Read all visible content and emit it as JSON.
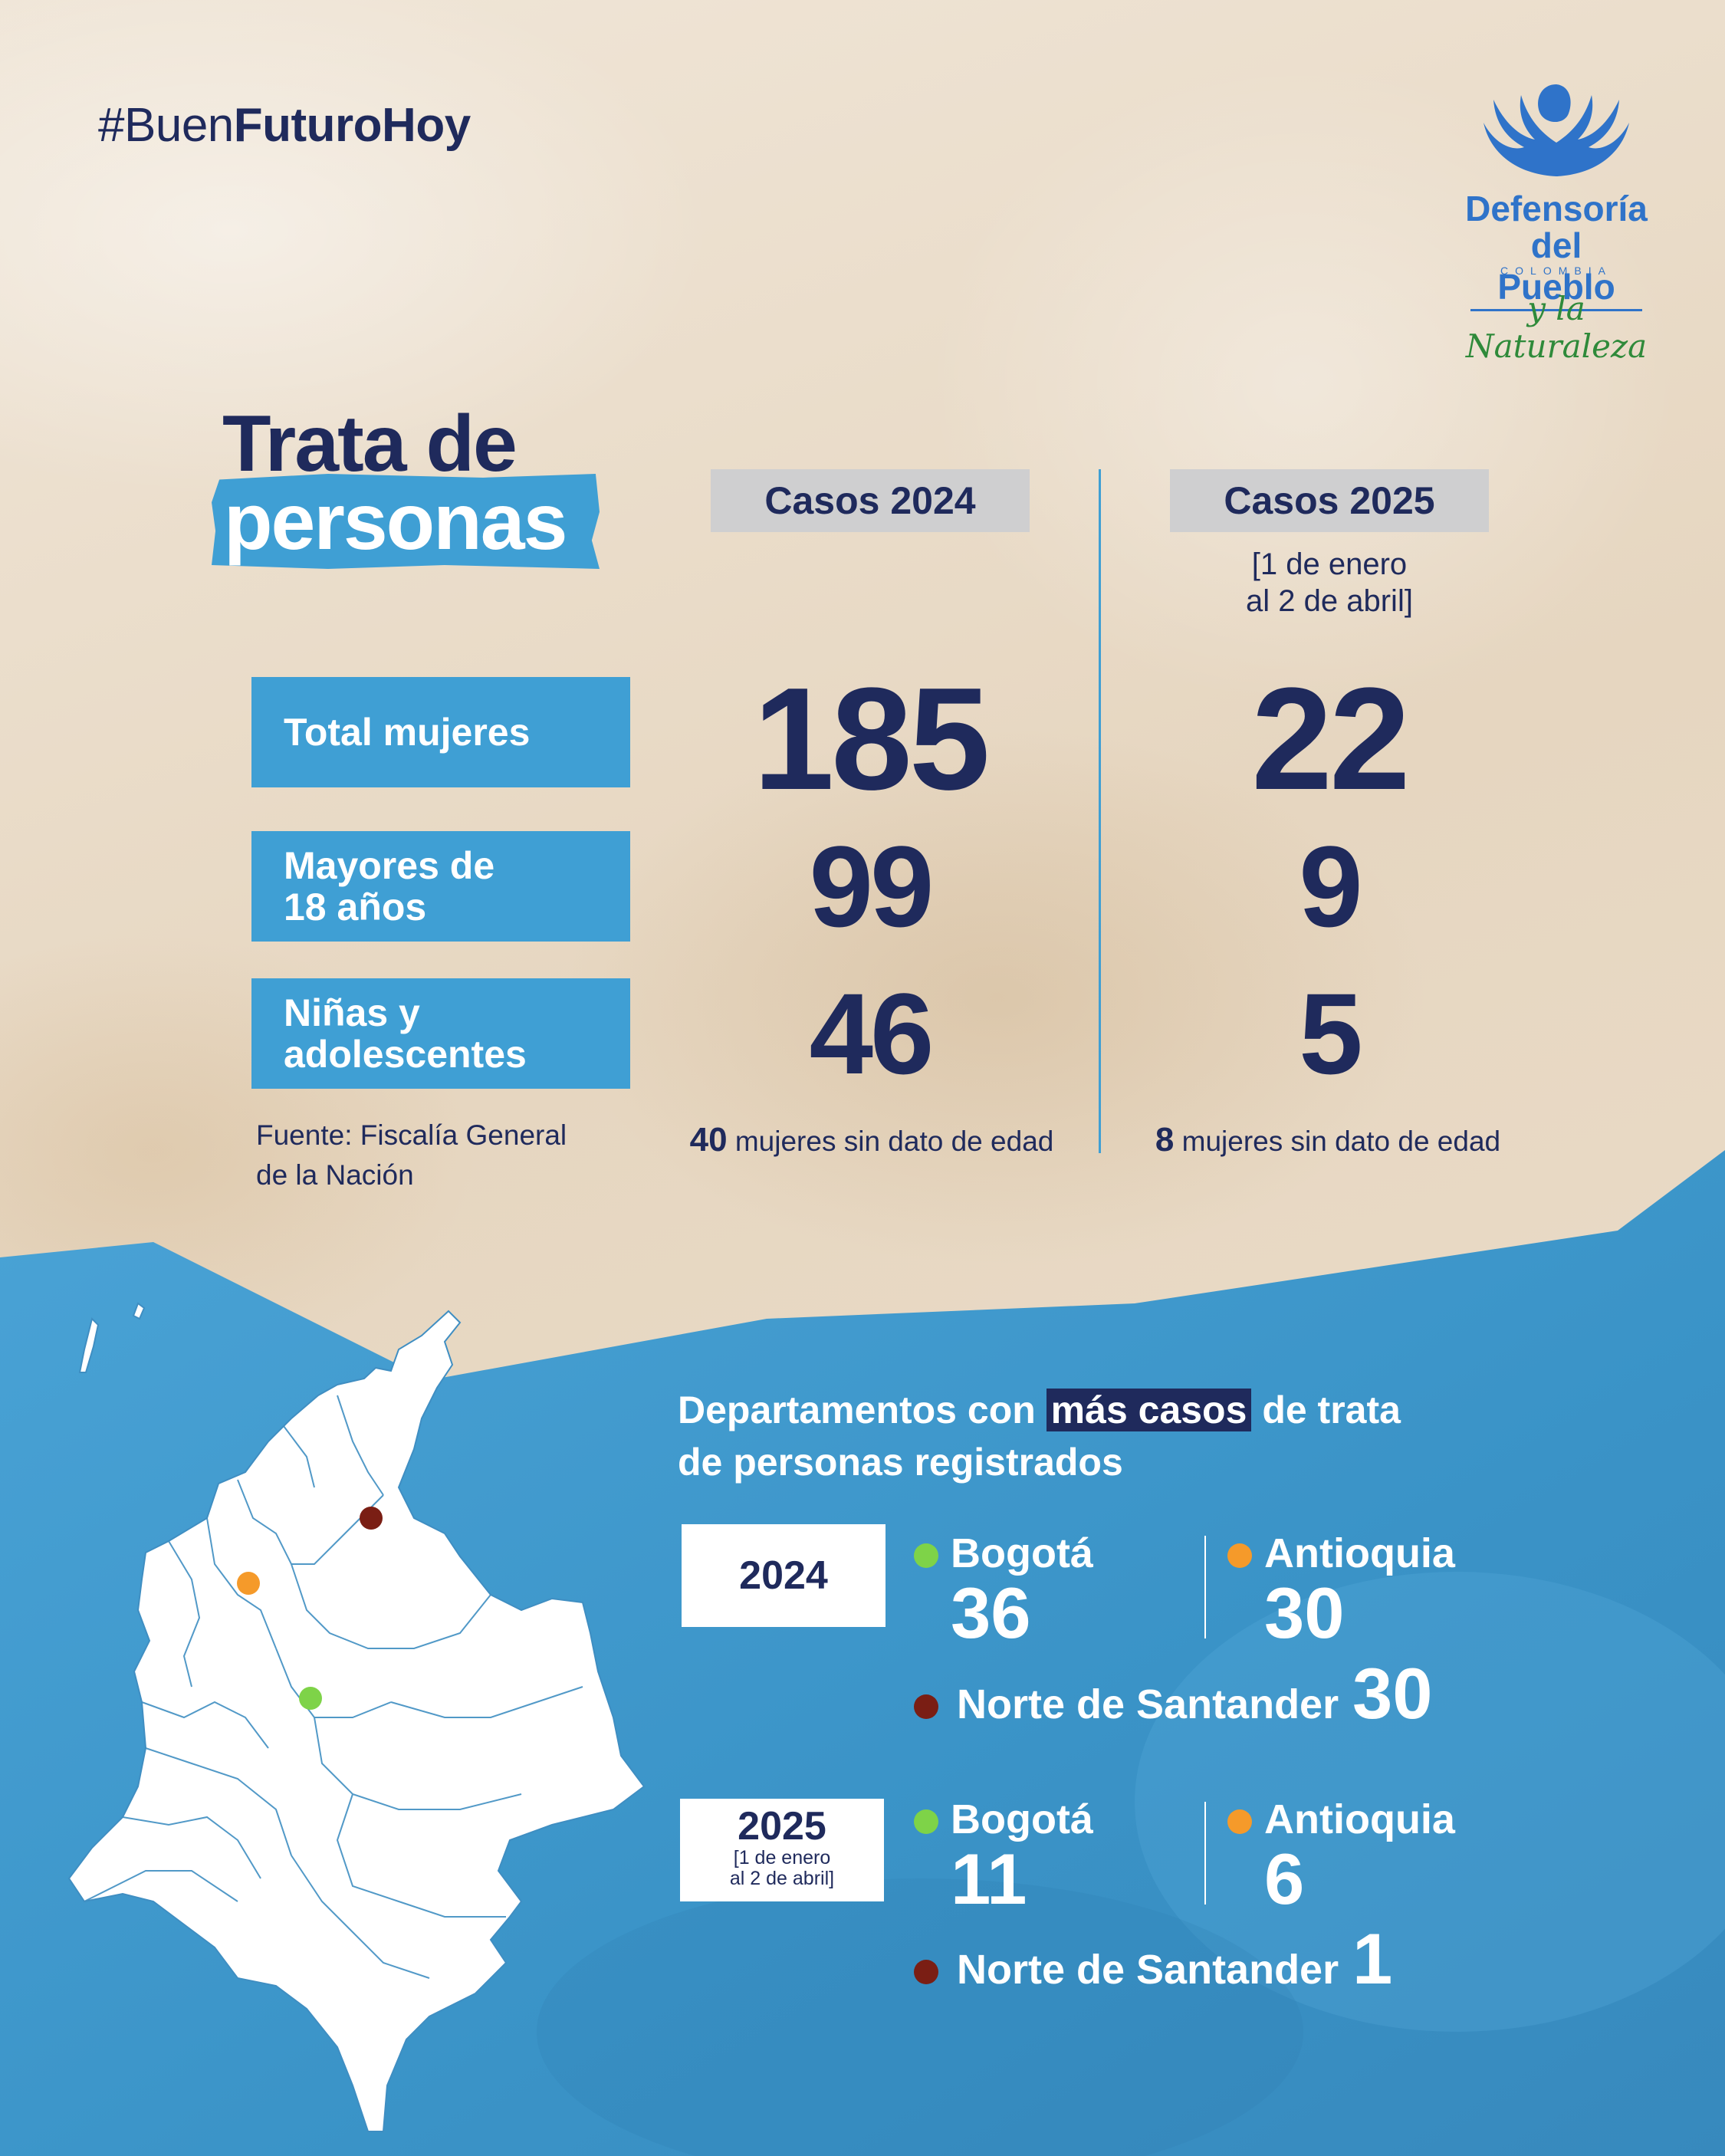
{
  "hashtag": {
    "light": "#Buen",
    "strong": "FuturoHoy"
  },
  "logo": {
    "line1": "Defensoría",
    "line2": "del Pueblo",
    "country": "COLOMBIA",
    "tagline": "y la Naturaleza"
  },
  "title": {
    "line1": "Trata de",
    "line2": "personas"
  },
  "columns": {
    "y2024": "Casos 2024",
    "y2025": "Casos 2025",
    "y2025_range_line1": "[1 de enero",
    "y2025_range_line2": "al 2 de abril]"
  },
  "rows": [
    {
      "label_line1": "Total mujeres",
      "label_line2": "",
      "v2024": "185",
      "v2025": "22"
    },
    {
      "label_line1": "Mayores de",
      "label_line2": "18 años",
      "v2024": "99",
      "v2025": "9"
    },
    {
      "label_line1": "Niñas y",
      "label_line2": "adolescentes",
      "v2024": "46",
      "v2025": "5"
    }
  ],
  "notes": {
    "n2024_value": "40",
    "n2024_text": " mujeres sin dato de edad",
    "n2025_value": "8",
    "n2025_text": " mujeres sin dato de edad"
  },
  "source": {
    "line1": "Fuente: Fiscalía General",
    "line2": "de la Nación"
  },
  "departments_title": {
    "part1": "Departamentos con ",
    "highlight": "más casos",
    "part2": " de trata",
    "line2": "de personas registrados"
  },
  "year_boxes": {
    "y2024": "2024",
    "y2025": "2025",
    "y2025_range_line1": "[1 de enero",
    "y2025_range_line2": "al 2 de abril]"
  },
  "departments_2024": [
    {
      "name": "Bogotá",
      "value": "36",
      "color": "#7ed348"
    },
    {
      "name": "Antioquia",
      "value": "30",
      "color": "#f59a2a"
    },
    {
      "name": "Norte de Santander",
      "value": "30",
      "color": "#7a1e14"
    }
  ],
  "departments_2025": [
    {
      "name": "Bogotá",
      "value": "11",
      "color": "#7ed348"
    },
    {
      "name": "Antioquia",
      "value": "6",
      "color": "#f59a2a"
    },
    {
      "name": "Norte de Santander",
      "value": "1",
      "color": "#7a1e14"
    }
  ],
  "map_markers": [
    {
      "department": "Norte de Santander",
      "color": "#7a1e14"
    },
    {
      "department": "Antioquia",
      "color": "#f59a2a"
    },
    {
      "department": "Bogotá",
      "color": "#7ed348"
    }
  ],
  "colors": {
    "navy": "#1f2a5c",
    "accent_blue": "#3f9fd4",
    "logo_blue": "#2f73c9",
    "logo_green": "#2f8a3a",
    "header_gray": "#cfcfd0"
  }
}
